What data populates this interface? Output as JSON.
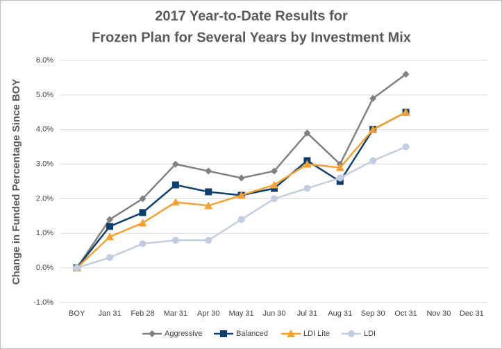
{
  "chart_data": {
    "type": "line",
    "title": [
      "2017 Year-to-Date Results for",
      "Frozen Plan for Several Years by Investment Mix"
    ],
    "y_label": "Change in Funded Percentage Since BOY",
    "categories": [
      "BOY",
      "Jan 31",
      "Feb 28",
      "Mar 31",
      "Apr 30",
      "May 31",
      "Jun 30",
      "Jul 31",
      "Aug 31",
      "Sep 30",
      "Oct 31",
      "Nov 30",
      "Dec 31"
    ],
    "series": [
      {
        "name": "Aggressive",
        "color": "#808080",
        "marker": "diamond",
        "values": [
          0,
          1.4,
          2.0,
          3.0,
          2.8,
          2.6,
          2.8,
          3.9,
          3.0,
          4.9,
          5.6,
          null,
          null
        ]
      },
      {
        "name": "Balanced",
        "color": "#0f3f6e",
        "marker": "square",
        "values": [
          0,
          1.2,
          1.6,
          2.4,
          2.2,
          2.1,
          2.3,
          3.1,
          2.5,
          4.0,
          4.5,
          null,
          null
        ]
      },
      {
        "name": "LDI Lite",
        "color": "#f5a031",
        "marker": "triangle",
        "values": [
          0,
          0.9,
          1.3,
          1.9,
          1.8,
          2.1,
          2.4,
          3.0,
          2.9,
          4.0,
          4.5,
          null,
          null
        ]
      },
      {
        "name": "LDI",
        "color": "#c3cde0",
        "marker": "circle",
        "values": [
          0,
          0.3,
          0.7,
          0.8,
          0.8,
          1.4,
          2.0,
          2.3,
          2.6,
          3.1,
          3.5,
          null,
          null
        ]
      }
    ],
    "ylim": [
      -1,
      6
    ],
    "yticks": [
      {
        "value": -1,
        "label": "-1.0%"
      },
      {
        "value": 0,
        "label": "0.0%"
      },
      {
        "value": 1,
        "label": "1.0%"
      },
      {
        "value": 2,
        "label": "2.0%"
      },
      {
        "value": 3,
        "label": "3.0%"
      },
      {
        "value": 4,
        "label": "4.0%"
      },
      {
        "value": 5,
        "label": "5.0%"
      },
      {
        "value": 6,
        "label": "6.0%"
      }
    ],
    "grid": true,
    "legend": "bottom"
  }
}
